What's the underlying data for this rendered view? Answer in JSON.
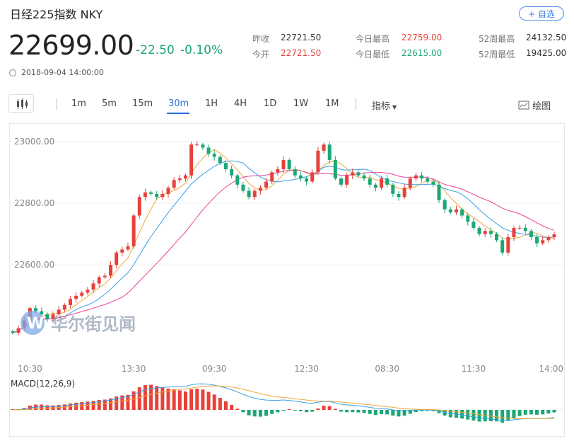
{
  "header": {
    "title": "日经225指数 NKY",
    "watch_label": "+ 自选",
    "price": "22699.00",
    "change": "-22.50",
    "change_pct": "-0.10%",
    "timestamp": "2018-09-04 14:00:00"
  },
  "stats": [
    {
      "label": "昨收",
      "value": "22721.50",
      "color": "#333333"
    },
    {
      "label": "今开",
      "value": "22721.50",
      "color": "#e8413a"
    },
    {
      "label": "今日最高",
      "value": "22759.00",
      "color": "#e8413a"
    },
    {
      "label": "今日最低",
      "value": "22615.00",
      "color": "#1aa874"
    },
    {
      "label": "52周最高",
      "value": "24132.50",
      "color": "#333333"
    },
    {
      "label": "52周最低",
      "value": "19425.00",
      "color": "#333333"
    }
  ],
  "toolbar": {
    "intervals": [
      "1m",
      "5m",
      "15m",
      "30m",
      "1H",
      "4H",
      "1D",
      "1W",
      "1M"
    ],
    "active_interval": "30m",
    "indicator_label": "指标",
    "draw_label": "绘图"
  },
  "watermark": "华尔街见闻",
  "colors": {
    "up": "#e8413a",
    "down": "#1aa874",
    "ma_fast": "#f0a63a",
    "ma_mid": "#3aa0e8",
    "ma_slow": "#e8409a"
  },
  "chart_data": {
    "type": "candlestick",
    "y_ticks": [
      "23000.00",
      "22800.00",
      "22600.00"
    ],
    "ylim": [
      22300,
      23050
    ],
    "x_tick_labels": [
      "10:30",
      "13:30",
      "09:30",
      "12:30",
      "08:30",
      "11:30",
      "14:00"
    ],
    "x_tick_index": [
      3,
      21,
      35,
      51,
      65,
      80,
      94
    ],
    "close": [
      22380,
      22395,
      22420,
      22460,
      22450,
      22440,
      22425,
      22440,
      22455,
      22470,
      22490,
      22500,
      22510,
      22520,
      22540,
      22560,
      22565,
      22600,
      22640,
      22650,
      22660,
      22760,
      22820,
      22835,
      22830,
      22820,
      22830,
      22850,
      22875,
      22880,
      22890,
      22990,
      22990,
      22980,
      22960,
      22950,
      22930,
      22910,
      22890,
      22860,
      22840,
      22820,
      22840,
      22850,
      22870,
      22900,
      22910,
      22940,
      22910,
      22890,
      22880,
      22870,
      22900,
      22970,
      22990,
      22940,
      22880,
      22860,
      22890,
      22900,
      22890,
      22880,
      22860,
      22850,
      22880,
      22860,
      22830,
      22820,
      22850,
      22880,
      22890,
      22880,
      22870,
      22860,
      22810,
      22780,
      22770,
      22780,
      22760,
      22740,
      22720,
      22700,
      22710,
      22700,
      22680,
      22640,
      22690,
      22720,
      22720,
      22710,
      22690,
      22670,
      22680,
      22690,
      22699
    ],
    "macd": {
      "name": "MACD(12,26,9)"
    }
  }
}
